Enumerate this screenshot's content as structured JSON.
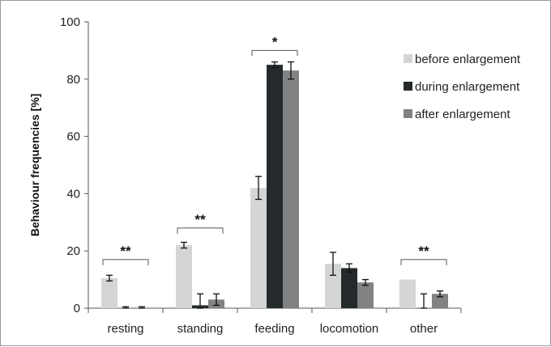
{
  "chart_data": {
    "type": "bar",
    "ylabel": "Behaviour frequencies [%]",
    "ylim": [
      0,
      100
    ],
    "yticks": [
      0,
      20,
      40,
      60,
      80,
      100
    ],
    "categories": [
      "resting",
      "standing",
      "feeding",
      "locomotion",
      "other"
    ],
    "series": [
      {
        "name": "before enlargement",
        "color": "#d4d6d6",
        "values": [
          10.5,
          22,
          42,
          15.5,
          10
        ],
        "errors": [
          1,
          1,
          4,
          4,
          0
        ]
      },
      {
        "name": "during enlargement",
        "color": "#242a2c",
        "values": [
          0,
          1,
          85,
          14,
          0
        ],
        "errors": [
          0.5,
          4,
          1,
          1.5,
          5
        ]
      },
      {
        "name": "after enlargement",
        "color": "#808283",
        "values": [
          0,
          3,
          83,
          9,
          5
        ],
        "errors": [
          0.5,
          2,
          3,
          1,
          1
        ]
      }
    ],
    "significance": [
      {
        "category_index": 0,
        "label": "**",
        "y": 17
      },
      {
        "category_index": 1,
        "label": "**",
        "y": 28
      },
      {
        "category_index": 2,
        "label": "*",
        "y": 90
      },
      {
        "category_index": 4,
        "label": "**",
        "y": 17
      }
    ],
    "legend_position": "top-right",
    "grid": false
  }
}
